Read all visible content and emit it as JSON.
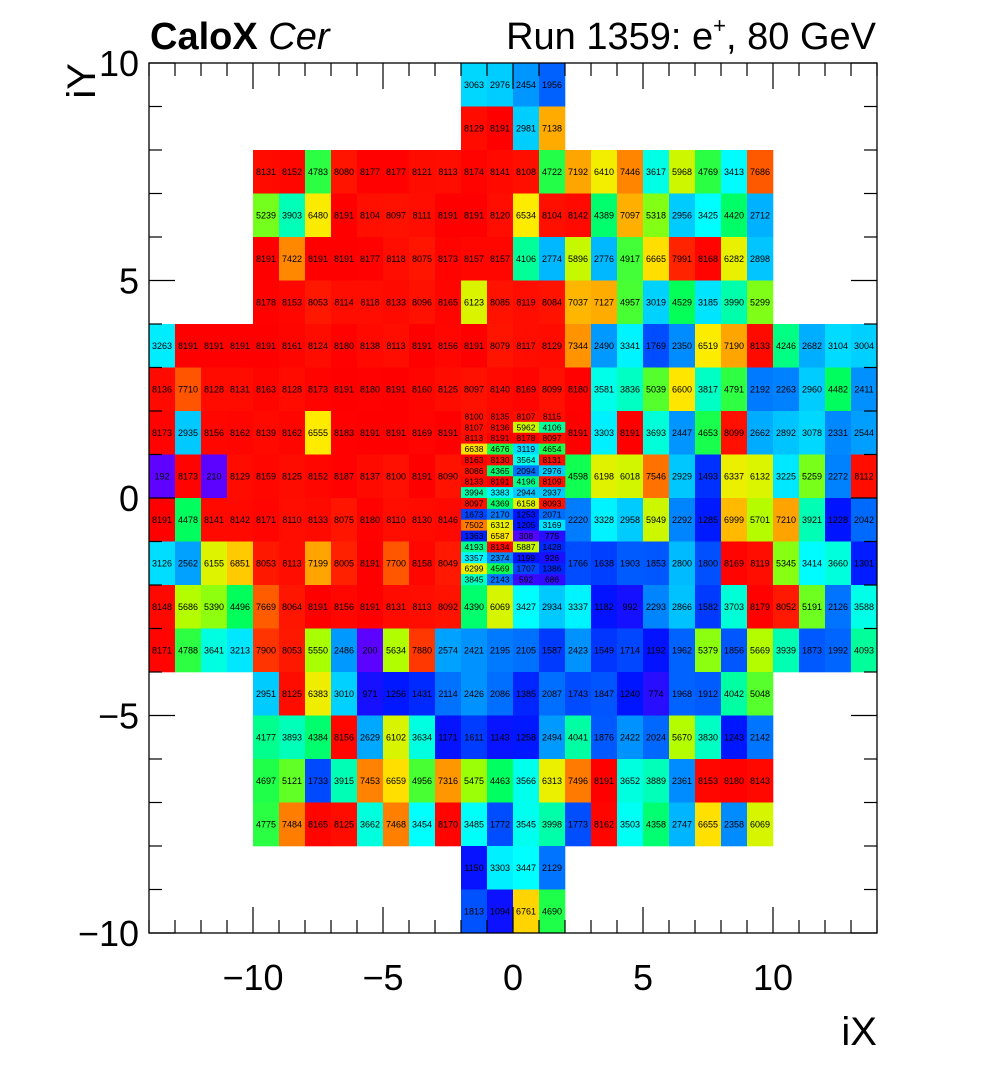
{
  "header": {
    "detector": "CaloX",
    "channel": "Cer",
    "run_prefix": "Run 1359: e",
    "particle_charge": "+",
    "run_suffix": ", 80 GeV"
  },
  "chart_data": {
    "type": "heatmap",
    "xlabel": "iX",
    "ylabel": "iY",
    "xlim": [
      -14,
      14
    ],
    "ylim": [
      -10,
      10
    ],
    "xticks": [
      -10,
      -5,
      0,
      5,
      10
    ],
    "yticks": [
      -10,
      -5,
      0,
      5,
      10
    ],
    "colorscale": "rainbow",
    "zlim": [
      0,
      8191
    ],
    "grid": false,
    "legend": "none",
    "rows": [
      {
        "y0": 9,
        "y1": 10,
        "x0": -2,
        "values": [
          3063,
          2976,
          2454,
          1956
        ]
      },
      {
        "y0": 8,
        "y1": 9,
        "x0": -2,
        "values": [
          8129,
          8191,
          2981,
          7138
        ]
      },
      {
        "y0": 7,
        "y1": 8,
        "x0": -10,
        "values": [
          8131,
          8152,
          4783,
          8080,
          8177,
          8177,
          8121,
          8113,
          8174,
          8141,
          8108,
          4722,
          7192,
          6410,
          7446,
          3617,
          5968,
          4769,
          3413,
          7686
        ]
      },
      {
        "y0": 6,
        "y1": 7,
        "x0": -10,
        "values": [
          5239,
          3903,
          6480,
          8191,
          8104,
          8097,
          8111,
          8191,
          8191,
          8120,
          6534,
          8104,
          8142,
          4389,
          7097,
          5318,
          2956,
          3425,
          4420,
          2712
        ]
      },
      {
        "y0": 5,
        "y1": 6,
        "x0": -10,
        "values": [
          8191,
          7422,
          8191,
          8191,
          8177,
          8118,
          8075,
          8173,
          8157,
          8157,
          4106,
          2774,
          5896,
          2776,
          4917,
          6665,
          7991,
          8168,
          6282,
          2898
        ]
      },
      {
        "y0": 4,
        "y1": 5,
        "x0": -10,
        "values": [
          8178,
          8153,
          8053,
          8114,
          8118,
          8133,
          8096,
          8165,
          6123,
          8085,
          8119,
          8084,
          7037,
          7127,
          4957,
          3019,
          4529,
          3185,
          3990,
          5299
        ]
      },
      {
        "y0": 3,
        "y1": 4,
        "x0": -14,
        "values": [
          3263,
          8191,
          8191,
          8191,
          8191,
          8161,
          8124,
          8180,
          8138,
          8113,
          8191,
          8156,
          8191,
          8079,
          8117,
          8129,
          7344,
          2490,
          3341,
          1769,
          2350,
          6519,
          7190,
          8133,
          4246,
          2682,
          3104,
          3004
        ]
      },
      {
        "y0": 2,
        "y1": 3,
        "x0": -14,
        "values": [
          8136,
          7710,
          8128,
          8131,
          8163,
          8128,
          8173,
          8191,
          8180,
          8191,
          8160,
          8125,
          8097,
          8140,
          8169,
          8099,
          8180,
          3581,
          3836,
          5039,
          6600,
          3817,
          4791,
          2192,
          2263,
          2960,
          4482,
          2411
        ]
      },
      {
        "y0": 1,
        "y1": 2,
        "x0": -14,
        "values": [
          8173,
          2935,
          8156,
          8162,
          8139,
          8162,
          6555,
          8183,
          8191,
          8191,
          8169,
          8191,
          null,
          null,
          null,
          null,
          8191,
          3303,
          8191,
          3693,
          2447,
          4653,
          8099,
          2662,
          2892,
          3078,
          2331,
          2544
        ]
      },
      {
        "y0": 0,
        "y1": 1,
        "x0": -14,
        "values": [
          192,
          8173,
          210,
          8129,
          8159,
          8125,
          8152,
          8187,
          8137,
          8100,
          8191,
          8090,
          null,
          null,
          null,
          null,
          4598,
          6198,
          6018,
          7546,
          2929,
          1493,
          6337,
          6132,
          3225,
          5259,
          2272,
          8112
        ]
      },
      {
        "y0": -1,
        "y1": 0,
        "x0": -14,
        "values": [
          8191,
          4478,
          8141,
          8142,
          8171,
          8110,
          8133,
          8075,
          8180,
          8110,
          8130,
          8146,
          null,
          null,
          null,
          null,
          2220,
          3328,
          2958,
          5949,
          2292,
          1285,
          6999,
          5701,
          7210,
          3921,
          1228,
          2042
        ]
      },
      {
        "y0": -2,
        "y1": -1,
        "x0": -14,
        "values": [
          3126,
          2562,
          6155,
          6851,
          8053,
          8113,
          7199,
          8005,
          8191,
          7700,
          8158,
          8049,
          null,
          null,
          null,
          null,
          1766,
          1638,
          1903,
          1853,
          2800,
          1800,
          8169,
          8119,
          5345,
          3414,
          3660,
          1301
        ]
      },
      {
        "y0": -3,
        "y1": -2,
        "x0": -14,
        "values": [
          8148,
          5686,
          5390,
          4496,
          7669,
          8064,
          8191,
          8156,
          8191,
          8131,
          8113,
          8092,
          4390,
          6069,
          3427,
          2934,
          3337,
          1182,
          992,
          2293,
          2866,
          1582,
          3703,
          8179,
          8052,
          5191,
          2126,
          3588
        ]
      },
      {
        "y0": -4,
        "y1": -3,
        "x0": -14,
        "values": [
          8171,
          4788,
          3641,
          3213,
          7900,
          8053,
          5550,
          2486,
          200,
          5634,
          7880,
          2574,
          2421,
          2195,
          2105,
          1587,
          2423,
          1549,
          1714,
          1192,
          1962,
          5379,
          1856,
          5669,
          3939,
          1873,
          1992,
          4093
        ]
      },
      {
        "y0": -5,
        "y1": -4,
        "x0": -10,
        "values": [
          2951,
          8125,
          6383,
          3010,
          971,
          1256,
          1431,
          2114,
          2426,
          2086,
          1385,
          2087,
          1743,
          1847,
          1240,
          774,
          1968,
          1912,
          4042,
          5048
        ]
      },
      {
        "y0": -6,
        "y1": -5,
        "x0": -10,
        "values": [
          4177,
          3893,
          4384,
          8156,
          2629,
          6102,
          3634,
          1171,
          1611,
          1143,
          1258,
          2494,
          4041,
          1876,
          2422,
          2024,
          5670,
          3830,
          1243,
          2142
        ]
      },
      {
        "y0": -7,
        "y1": -6,
        "x0": -10,
        "values": [
          4697,
          5121,
          1733,
          3915,
          7453,
          6659,
          4956,
          7316,
          5475,
          4463,
          3566,
          6313,
          7496,
          8191,
          3652,
          3889,
          2361,
          8153,
          8180,
          8143
        ]
      },
      {
        "y0": -8,
        "y1": -7,
        "x0": -10,
        "values": [
          4775,
          7484,
          8165,
          8125,
          3662,
          7468,
          3454,
          8170,
          3485,
          1772,
          3545,
          3998,
          1773,
          8162,
          3503,
          4358,
          2747,
          6655,
          2358,
          6069
        ]
      },
      {
        "y0": -9,
        "y1": -8,
        "x0": -2,
        "values": [
          1150,
          3303,
          3447,
          2129
        ]
      },
      {
        "y0": -10,
        "y1": -9,
        "x0": -2,
        "values": [
          1813,
          1094,
          6761,
          4690
        ]
      }
    ],
    "fine_rows": [
      {
        "y0": 1.75,
        "y1": 2.0,
        "x0": -2,
        "values": [
          8100,
          8135,
          8107,
          8115
        ]
      },
      {
        "y0": 1.5,
        "y1": 1.75,
        "x0": -2,
        "values": [
          8107,
          8136,
          5962,
          4106
        ]
      },
      {
        "y0": 1.25,
        "y1": 1.5,
        "x0": -2,
        "values": [
          8113,
          8191,
          8178,
          8097
        ]
      },
      {
        "y0": 1.0,
        "y1": 1.25,
        "x0": -2,
        "values": [
          6638,
          4676,
          3119,
          4654
        ]
      },
      {
        "y0": 0.75,
        "y1": 1.0,
        "x0": -2,
        "values": [
          8163,
          8130,
          3564,
          8131
        ]
      },
      {
        "y0": 0.5,
        "y1": 0.75,
        "x0": -2,
        "values": [
          8086,
          4365,
          2094,
          2976
        ]
      },
      {
        "y0": 0.25,
        "y1": 0.5,
        "x0": -2,
        "values": [
          8133,
          8191,
          4196,
          8109
        ]
      },
      {
        "y0": 0.0,
        "y1": 0.25,
        "x0": -2,
        "values": [
          3994,
          3383,
          2944,
          2937
        ]
      },
      {
        "y0": -0.25,
        "y1": 0.0,
        "x0": -2,
        "values": [
          8097,
          4369,
          6158,
          8093
        ]
      },
      {
        "y0": -0.5,
        "y1": -0.25,
        "x0": -2,
        "values": [
          1673,
          2170,
          1253,
          2071
        ]
      },
      {
        "y0": -0.75,
        "y1": -0.5,
        "x0": -2,
        "values": [
          7502,
          6312,
          1205,
          3169
        ]
      },
      {
        "y0": -1.0,
        "y1": -0.75,
        "x0": -2,
        "values": [
          1363,
          6587,
          308,
          775
        ]
      },
      {
        "y0": -1.25,
        "y1": -1.0,
        "x0": -2,
        "values": [
          4193,
          8134,
          5887,
          1428
        ]
      },
      {
        "y0": -1.5,
        "y1": -1.25,
        "x0": -2,
        "values": [
          3357,
          2374,
          1199,
          926
        ]
      },
      {
        "y0": -1.75,
        "y1": -1.5,
        "x0": -2,
        "values": [
          6299,
          4569,
          1707,
          1386
        ]
      },
      {
        "y0": -2.0,
        "y1": -1.75,
        "x0": -2,
        "values": [
          3845,
          2143,
          592,
          686
        ]
      }
    ]
  }
}
